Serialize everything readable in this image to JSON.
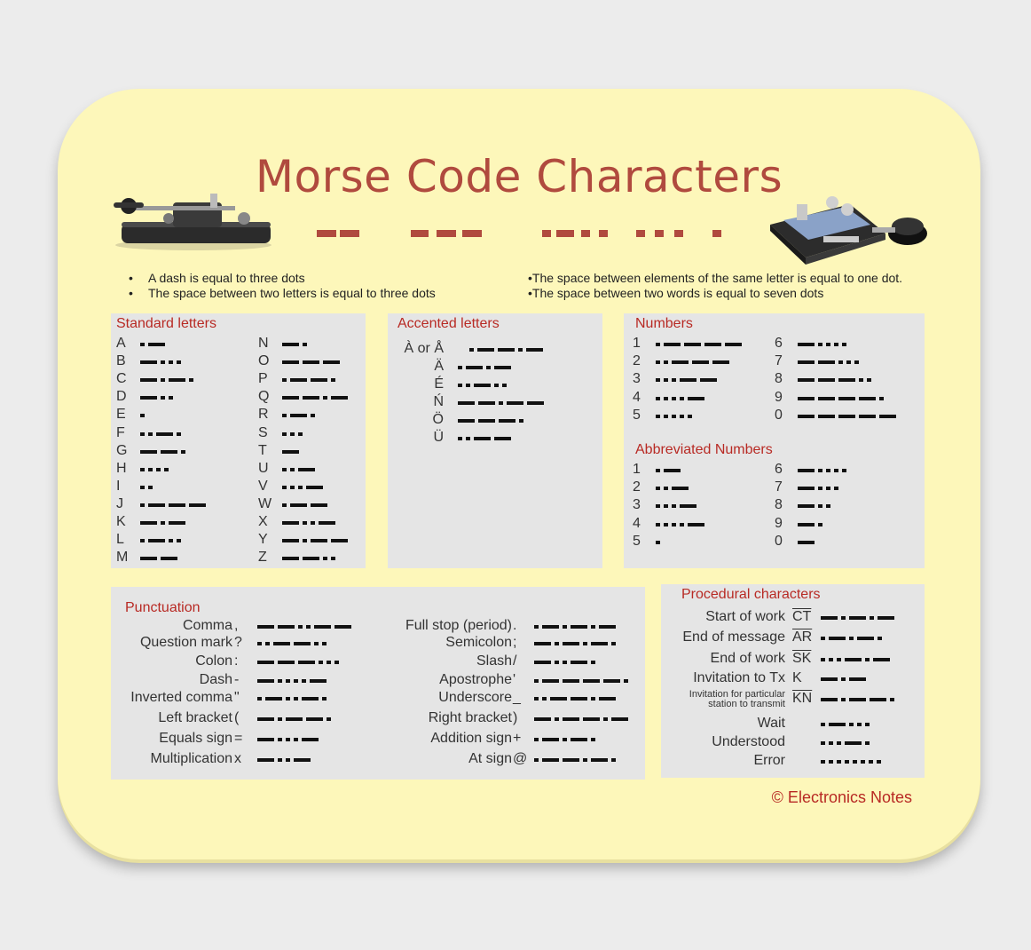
{
  "title": "Morse Code Characters",
  "accent_color": "#b04a3e",
  "bullets_left": [
    "A dash is equal to three dots",
    "The space between two letters is equal to three dots"
  ],
  "bullets_right": [
    "The space between elements of the same letter is equal to one dot.",
    "The space between two words is equal to seven dots"
  ],
  "standard_letters": {
    "title": "Standard letters",
    "items": [
      {
        "ch": "A",
        "code": ".-"
      },
      {
        "ch": "B",
        "code": "-..."
      },
      {
        "ch": "C",
        "code": "-.-."
      },
      {
        "ch": "D",
        "code": "-.."
      },
      {
        "ch": "E",
        "code": "."
      },
      {
        "ch": "F",
        "code": "..-."
      },
      {
        "ch": "G",
        "code": "--."
      },
      {
        "ch": "H",
        "code": "...."
      },
      {
        "ch": "I",
        "code": ".."
      },
      {
        "ch": "J",
        "code": ".---"
      },
      {
        "ch": "K",
        "code": "-.-"
      },
      {
        "ch": "L",
        "code": ".-.."
      },
      {
        "ch": "M",
        "code": "--"
      },
      {
        "ch": "N",
        "code": "-."
      },
      {
        "ch": "O",
        "code": "---"
      },
      {
        "ch": "P",
        "code": ".--."
      },
      {
        "ch": "Q",
        "code": "--.-"
      },
      {
        "ch": "R",
        "code": ".-."
      },
      {
        "ch": "S",
        "code": "..."
      },
      {
        "ch": "T",
        "code": "-"
      },
      {
        "ch": "U",
        "code": "..-"
      },
      {
        "ch": "V",
        "code": "...-"
      },
      {
        "ch": "W",
        "code": ".--"
      },
      {
        "ch": "X",
        "code": "-..-"
      },
      {
        "ch": "Y",
        "code": "-.--"
      },
      {
        "ch": "Z",
        "code": "--.."
      }
    ]
  },
  "accented_letters": {
    "title": "Accented letters",
    "items": [
      {
        "ch": "À or Å",
        "code": ".--.-"
      },
      {
        "ch": "Ä",
        "code": ".-.-"
      },
      {
        "ch": "É",
        "code": "..-.."
      },
      {
        "ch": "Ń",
        "code": "--.--"
      },
      {
        "ch": "Ö",
        "code": "---."
      },
      {
        "ch": "Ü",
        "code": "..--"
      }
    ]
  },
  "numbers": {
    "title": "Numbers",
    "items": [
      {
        "ch": "1",
        "code": ".----"
      },
      {
        "ch": "2",
        "code": "..---"
      },
      {
        "ch": "3",
        "code": "...--"
      },
      {
        "ch": "4",
        "code": "....-"
      },
      {
        "ch": "5",
        "code": "....."
      },
      {
        "ch": "6",
        "code": "-...."
      },
      {
        "ch": "7",
        "code": "--..."
      },
      {
        "ch": "8",
        "code": "---.."
      },
      {
        "ch": "9",
        "code": "----."
      },
      {
        "ch": "0",
        "code": "-----"
      }
    ]
  },
  "abbreviated_numbers": {
    "title": "Abbreviated Numbers",
    "items": [
      {
        "ch": "1",
        "code": ".-"
      },
      {
        "ch": "2",
        "code": "..-"
      },
      {
        "ch": "3",
        "code": "...-"
      },
      {
        "ch": "4",
        "code": "....-"
      },
      {
        "ch": "5",
        "code": "."
      },
      {
        "ch": "6",
        "code": "-...."
      },
      {
        "ch": "7",
        "code": "-..."
      },
      {
        "ch": "8",
        "code": "-.."
      },
      {
        "ch": "9",
        "code": "-."
      },
      {
        "ch": "0",
        "code": "-"
      }
    ]
  },
  "punctuation": {
    "title": "Punctuation",
    "items": [
      {
        "name": "Comma",
        "sym": ",",
        "code": "--..--"
      },
      {
        "name": "Question mark",
        "sym": "?",
        "code": "..--.."
      },
      {
        "name": "Colon",
        "sym": ":",
        "code": "---..."
      },
      {
        "name": "Dash",
        "sym": "-",
        "code": "-....-"
      },
      {
        "name": "Inverted comma",
        "sym": "\"",
        "code": ".-..-."
      },
      {
        "name": "Left bracket",
        "sym": "(",
        "code": "-.--."
      },
      {
        "name": "Equals sign",
        "sym": "=",
        "code": "-...-"
      },
      {
        "name": "Multiplication",
        "sym": "x",
        "code": "-..-"
      },
      {
        "name": "Full stop (period)",
        "sym": ".",
        "code": ".-.-.-"
      },
      {
        "name": "Semicolon",
        "sym": ";",
        "code": "-.-.-."
      },
      {
        "name": "Slash",
        "sym": "/",
        "code": "-..-."
      },
      {
        "name": "Apostrophe",
        "sym": "'",
        "code": ".----."
      },
      {
        "name": "Underscore",
        "sym": "_",
        "code": "..--.-"
      },
      {
        "name": "Right bracket",
        "sym": ")",
        "code": "-.--.-"
      },
      {
        "name": "Addition sign",
        "sym": "+",
        "code": ".-.-."
      },
      {
        "name": "At sign",
        "sym": "@",
        "code": ".--.-."
      }
    ]
  },
  "procedural": {
    "title": "Procedural characters",
    "items": [
      {
        "name": "Start of work",
        "sym": "CT",
        "code": "-.-.-"
      },
      {
        "name": "End of message",
        "sym": "AR",
        "code": ".-.-."
      },
      {
        "name": "End of work",
        "sym": "SK",
        "code": "...-.-"
      },
      {
        "name": "Invitation to Tx",
        "sym": "K",
        "code": "-.-"
      },
      {
        "name": "Invitation for particular station to transmit",
        "sym": "KN",
        "code": "-.--."
      },
      {
        "name": "Wait",
        "sym": "",
        "code": ".-..."
      },
      {
        "name": "Understood",
        "sym": "",
        "code": "...-."
      },
      {
        "name": "Error",
        "sym": "",
        "code": "........"
      }
    ]
  },
  "copyright": "© Electronics Notes"
}
